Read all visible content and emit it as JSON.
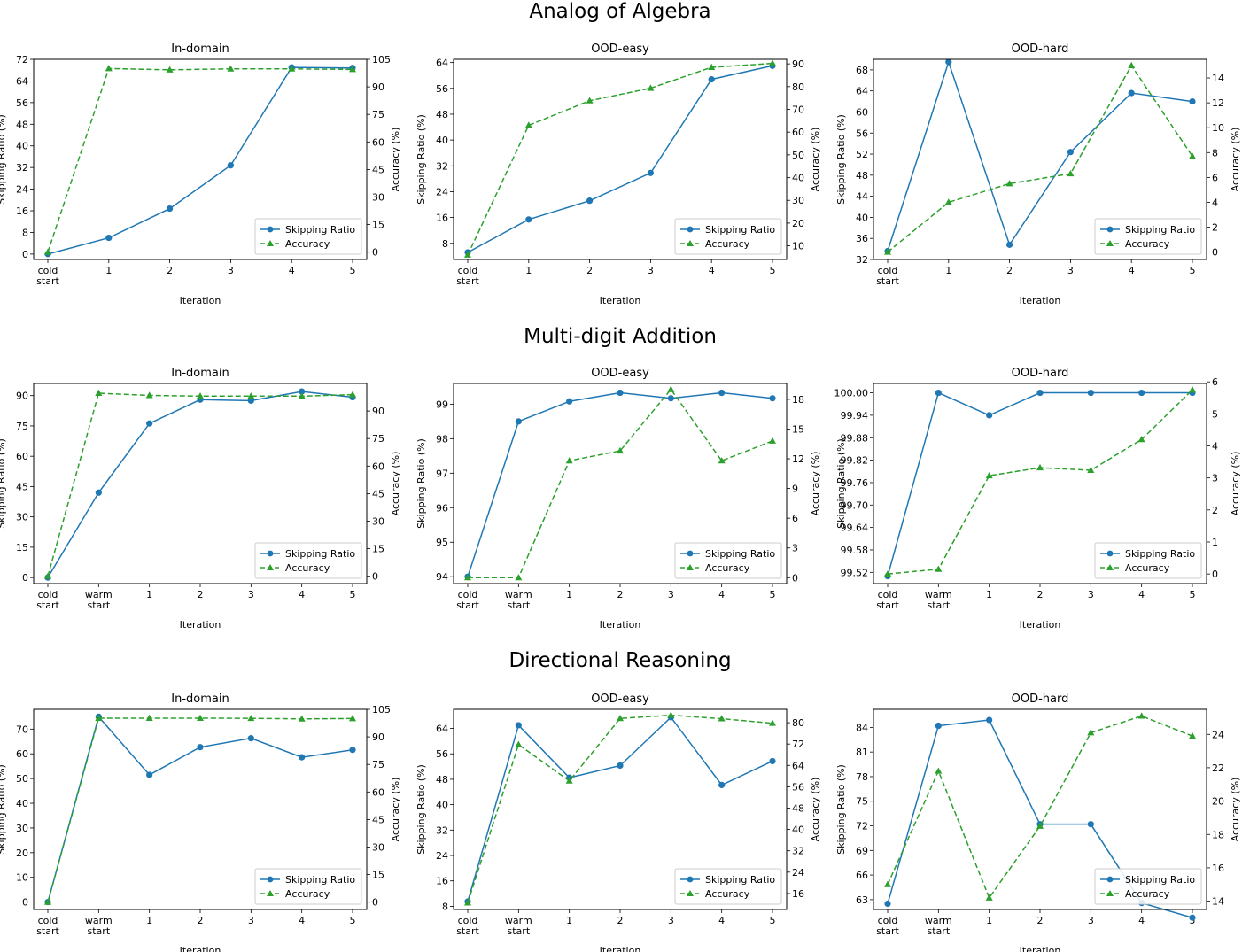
{
  "section_titles": [
    "Analog of Algebra",
    "Multi-digit Addition",
    "Directional Reasoning"
  ],
  "colors": {
    "skipping": "#1f77b4",
    "accuracy": "#2ca02c"
  },
  "chart_data": [
    {
      "type": "line",
      "section": 0,
      "title": "In-domain",
      "xlabel": "Iteration",
      "ylabel": "Skipping Ratio (%)",
      "y2label": "Accuracy (%)",
      "categories": [
        [
          "cold",
          "start"
        ],
        [
          "1"
        ],
        [
          "2"
        ],
        [
          "3"
        ],
        [
          "4"
        ],
        [
          "5"
        ]
      ],
      "ylim": [
        -2,
        72
      ],
      "yticks": [
        0,
        8,
        16,
        24,
        32,
        40,
        48,
        56,
        64,
        72
      ],
      "y2lim": [
        -4,
        105
      ],
      "y2ticks": [
        0,
        15,
        30,
        45,
        60,
        75,
        90,
        105
      ],
      "legend_position": "lower-right",
      "series": [
        {
          "name": "Skipping Ratio",
          "axis": "left",
          "values": [
            0,
            6,
            16.8,
            32.8,
            69,
            68.8
          ]
        },
        {
          "name": "Accuracy",
          "axis": "right",
          "values": [
            0,
            100,
            99.3,
            99.8,
            99.8,
            99.5
          ]
        }
      ]
    },
    {
      "type": "line",
      "section": 0,
      "title": "OOD-easy",
      "xlabel": "Iteration",
      "ylabel": "Skipping Ratio (%)",
      "y2label": "Accuracy (%)",
      "categories": [
        [
          "cold",
          "start"
        ],
        [
          "1"
        ],
        [
          "2"
        ],
        [
          "3"
        ],
        [
          "4"
        ],
        [
          "5"
        ]
      ],
      "ylim": [
        3,
        65
      ],
      "yticks": [
        8,
        16,
        24,
        32,
        40,
        48,
        56,
        64
      ],
      "y2lim": [
        4,
        92
      ],
      "y2ticks": [
        10,
        20,
        30,
        40,
        50,
        60,
        70,
        80,
        90
      ],
      "legend_position": "lower-right",
      "series": [
        {
          "name": "Skipping Ratio",
          "axis": "left",
          "values": [
            5.2,
            15.4,
            21.2,
            29.8,
            58.8,
            63
          ]
        },
        {
          "name": "Accuracy",
          "axis": "right",
          "values": [
            6,
            63,
            73.8,
            79.3,
            88.5,
            90.2
          ]
        }
      ]
    },
    {
      "type": "line",
      "section": 0,
      "title": "OOD-hard",
      "xlabel": "Iteration",
      "ylabel": "Skipping Ratio (%)",
      "y2label": "Accuracy (%)",
      "categories": [
        [
          "cold",
          "start"
        ],
        [
          "1"
        ],
        [
          "2"
        ],
        [
          "3"
        ],
        [
          "4"
        ],
        [
          "5"
        ]
      ],
      "ylim": [
        32,
        70
      ],
      "yticks": [
        32,
        36,
        40,
        44,
        48,
        52,
        56,
        60,
        64,
        68
      ],
      "y2lim": [
        -0.6,
        15.5
      ],
      "y2ticks": [
        0,
        2,
        4,
        6,
        8,
        10,
        12,
        14
      ],
      "legend_position": "lower-right",
      "series": [
        {
          "name": "Skipping Ratio",
          "axis": "left",
          "values": [
            33.6,
            69.5,
            34.8,
            52.4,
            63.6,
            62
          ]
        },
        {
          "name": "Accuracy",
          "axis": "right",
          "values": [
            0,
            4,
            5.5,
            6.3,
            15,
            7.7
          ]
        }
      ]
    },
    {
      "type": "line",
      "section": 1,
      "title": "In-domain",
      "xlabel": "Iteration",
      "ylabel": "Skipping Ratio (%)",
      "y2label": "Accuracy (%)",
      "categories": [
        [
          "cold",
          "start"
        ],
        [
          "warm",
          "start"
        ],
        [
          "1"
        ],
        [
          "2"
        ],
        [
          "3"
        ],
        [
          "4"
        ],
        [
          "5"
        ]
      ],
      "ylim": [
        -3,
        96
      ],
      "yticks": [
        0,
        15,
        30,
        45,
        60,
        75,
        90
      ],
      "y2lim": [
        -4,
        105
      ],
      "y2ticks": [
        0,
        15,
        30,
        45,
        60,
        75,
        90
      ],
      "legend_position": "lower-right",
      "series": [
        {
          "name": "Skipping Ratio",
          "axis": "left",
          "values": [
            0,
            42,
            76.2,
            88,
            87.5,
            92,
            89.2
          ]
        },
        {
          "name": "Accuracy",
          "axis": "right",
          "values": [
            0,
            99.7,
            98.5,
            98.1,
            98.1,
            98.1,
            98.9
          ]
        }
      ]
    },
    {
      "type": "line",
      "section": 1,
      "title": "OOD-easy",
      "xlabel": "Iteration",
      "ylabel": "Skipping Ratio (%)",
      "y2label": "Accuracy (%)",
      "categories": [
        [
          "cold",
          "start"
        ],
        [
          "warm",
          "start"
        ],
        [
          "1"
        ],
        [
          "2"
        ],
        [
          "3"
        ],
        [
          "4"
        ],
        [
          "5"
        ]
      ],
      "ylim": [
        93.8,
        99.6
      ],
      "yticks": [
        94,
        95,
        96,
        97,
        98,
        99
      ],
      "y2lim": [
        -0.6,
        19.6
      ],
      "y2ticks": [
        0,
        3,
        6,
        9,
        12,
        15,
        18
      ],
      "legend_position": "lower-right",
      "series": [
        {
          "name": "Skipping Ratio",
          "axis": "left",
          "values": [
            94,
            98.5,
            99.08,
            99.33,
            99.17,
            99.33,
            99.17
          ]
        },
        {
          "name": "Accuracy",
          "axis": "right",
          "values": [
            0,
            0,
            11.8,
            12.8,
            19,
            11.8,
            13.8
          ]
        }
      ]
    },
    {
      "type": "line",
      "section": 1,
      "title": "OOD-hard",
      "xlabel": "Iteration",
      "ylabel": "Skipping Ratio (%)",
      "y2label": "Accuracy (%)",
      "categories": [
        [
          "cold",
          "start"
        ],
        [
          "warm",
          "start"
        ],
        [
          "1"
        ],
        [
          "2"
        ],
        [
          "3"
        ],
        [
          "4"
        ],
        [
          "5"
        ]
      ],
      "ylim": [
        99.49,
        100.025
      ],
      "yticks": [
        99.52,
        99.58,
        99.64,
        99.7,
        99.76,
        99.82,
        99.88,
        99.94,
        100.0
      ],
      "y2lim": [
        -0.3,
        5.95
      ],
      "y2ticks": [
        0,
        1,
        2,
        3,
        4,
        5,
        6
      ],
      "legend_position": "lower-right",
      "series": [
        {
          "name": "Skipping Ratio",
          "axis": "left",
          "values": [
            99.51,
            100,
            99.94,
            100,
            100,
            100,
            100
          ]
        },
        {
          "name": "Accuracy",
          "axis": "right",
          "values": [
            0,
            0.15,
            3.07,
            3.32,
            3.24,
            4.2,
            5.75
          ]
        }
      ]
    },
    {
      "type": "line",
      "section": 2,
      "title": "In-domain",
      "xlabel": "Iteration",
      "ylabel": "Skipping Ratio (%)",
      "y2label": "Accuracy (%)",
      "categories": [
        [
          "cold",
          "start"
        ],
        [
          "warm",
          "start"
        ],
        [
          "1"
        ],
        [
          "2"
        ],
        [
          "3"
        ],
        [
          "4"
        ],
        [
          "5"
        ]
      ],
      "ylim": [
        -3,
        78
      ],
      "yticks": [
        0,
        10,
        20,
        30,
        40,
        50,
        60,
        70
      ],
      "y2lim": [
        -4,
        105
      ],
      "y2ticks": [
        0,
        15,
        30,
        45,
        60,
        75,
        90,
        105
      ],
      "legend_position": "lower-right",
      "series": [
        {
          "name": "Skipping Ratio",
          "axis": "left",
          "values": [
            0,
            75,
            51.5,
            62.7,
            66.3,
            58.6,
            61.6
          ]
        },
        {
          "name": "Accuracy",
          "axis": "right",
          "values": [
            0,
            100.2,
            100.2,
            100.2,
            100.1,
            99.8,
            100
          ]
        }
      ]
    },
    {
      "type": "line",
      "section": 2,
      "title": "OOD-easy",
      "xlabel": "Iteration",
      "ylabel": "Skipping Ratio (%)",
      "y2label": "Accuracy (%)",
      "categories": [
        [
          "cold",
          "start"
        ],
        [
          "warm",
          "start"
        ],
        [
          "1"
        ],
        [
          "2"
        ],
        [
          "3"
        ],
        [
          "4"
        ],
        [
          "5"
        ]
      ],
      "ylim": [
        7,
        70
      ],
      "yticks": [
        8,
        16,
        24,
        32,
        40,
        48,
        56,
        64
      ],
      "y2lim": [
        10,
        85
      ],
      "y2ticks": [
        16,
        24,
        32,
        40,
        48,
        56,
        64,
        72,
        80
      ],
      "legend_position": "lower-right",
      "series": [
        {
          "name": "Skipping Ratio",
          "axis": "left",
          "values": [
            9.5,
            65,
            48.5,
            52.3,
            67.5,
            46.2,
            53.7
          ]
        },
        {
          "name": "Accuracy",
          "axis": "right",
          "values": [
            12.5,
            71.8,
            58.2,
            81.6,
            82.8,
            81.5,
            79.8
          ]
        }
      ]
    },
    {
      "type": "line",
      "section": 2,
      "title": "OOD-hard",
      "xlabel": "Iteration",
      "ylabel": "Skipping Ratio (%)",
      "y2label": "Accuracy (%)",
      "categories": [
        [
          "cold",
          "start"
        ],
        [
          "warm",
          "start"
        ],
        [
          "1"
        ],
        [
          "2"
        ],
        [
          "3"
        ],
        [
          "4"
        ],
        [
          "5"
        ]
      ],
      "ylim": [
        61.8,
        86.2
      ],
      "yticks": [
        63,
        66,
        69,
        72,
        75,
        78,
        81,
        84
      ],
      "y2lim": [
        13.5,
        25.5
      ],
      "y2ticks": [
        14,
        16,
        18,
        20,
        22,
        24
      ],
      "legend_position": "lower-right",
      "series": [
        {
          "name": "Skipping Ratio",
          "axis": "left",
          "values": [
            62.5,
            84.2,
            84.9,
            72.2,
            72.2,
            62.6,
            60.8
          ]
        },
        {
          "name": "Accuracy",
          "axis": "right",
          "values": [
            15,
            21.8,
            14.2,
            18.5,
            24.1,
            25.1,
            23.9
          ]
        }
      ]
    }
  ]
}
